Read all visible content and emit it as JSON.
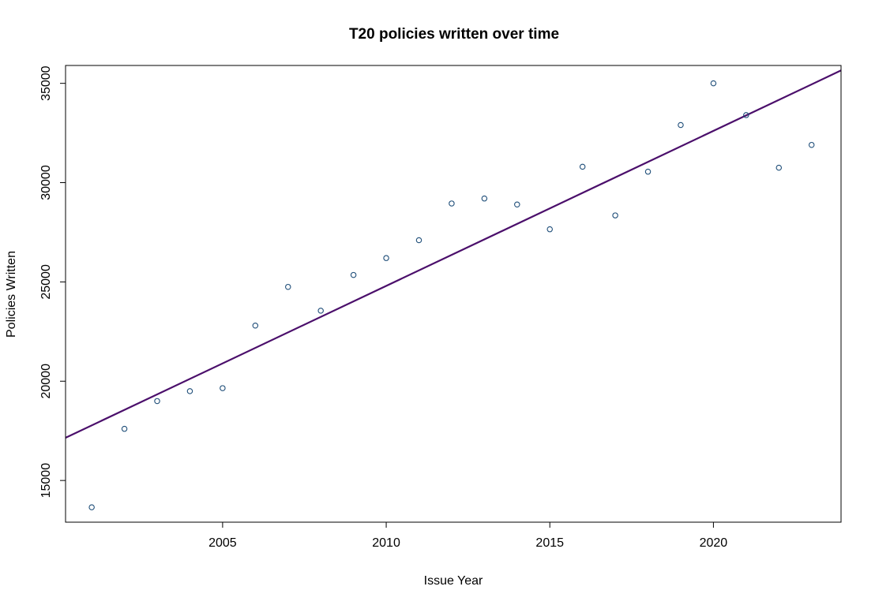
{
  "chart_data": {
    "type": "scatter",
    "title": "T20 policies written over time",
    "xlabel": "Issue Year",
    "ylabel": "Policies Written",
    "xlim": [
      2000.2,
      2023.9
    ],
    "ylim": [
      12900,
      35900
    ],
    "x_ticks": [
      2005,
      2010,
      2015,
      2020
    ],
    "y_ticks": [
      15000,
      20000,
      25000,
      30000,
      35000
    ],
    "grid": false,
    "legend": "none",
    "series": [
      {
        "marker": "open-circle",
        "color": "#1f4e79",
        "points": [
          {
            "x": 2001,
            "y": 13650
          },
          {
            "x": 2002,
            "y": 17600
          },
          {
            "x": 2003,
            "y": 19000
          },
          {
            "x": 2004,
            "y": 19500
          },
          {
            "x": 2005,
            "y": 19650
          },
          {
            "x": 2006,
            "y": 22800
          },
          {
            "x": 2007,
            "y": 24750
          },
          {
            "x": 2008,
            "y": 23550
          },
          {
            "x": 2009,
            "y": 25350
          },
          {
            "x": 2010,
            "y": 26200
          },
          {
            "x": 2011,
            "y": 27100
          },
          {
            "x": 2012,
            "y": 28950
          },
          {
            "x": 2013,
            "y": 29200
          },
          {
            "x": 2014,
            "y": 28900
          },
          {
            "x": 2015,
            "y": 27650
          },
          {
            "x": 2016,
            "y": 30800
          },
          {
            "x": 2017,
            "y": 28350
          },
          {
            "x": 2018,
            "y": 30550
          },
          {
            "x": 2019,
            "y": 32900
          },
          {
            "x": 2020,
            "y": 35000
          },
          {
            "x": 2021,
            "y": 33400
          },
          {
            "x": 2022,
            "y": 30750
          },
          {
            "x": 2023,
            "y": 31900
          }
        ]
      }
    ],
    "trend_line": {
      "type": "linear-fit",
      "color": "#4b0f6b",
      "points": [
        {
          "x": 2000.2,
          "y": 17150
        },
        {
          "x": 2023.9,
          "y": 35650
        }
      ]
    }
  }
}
